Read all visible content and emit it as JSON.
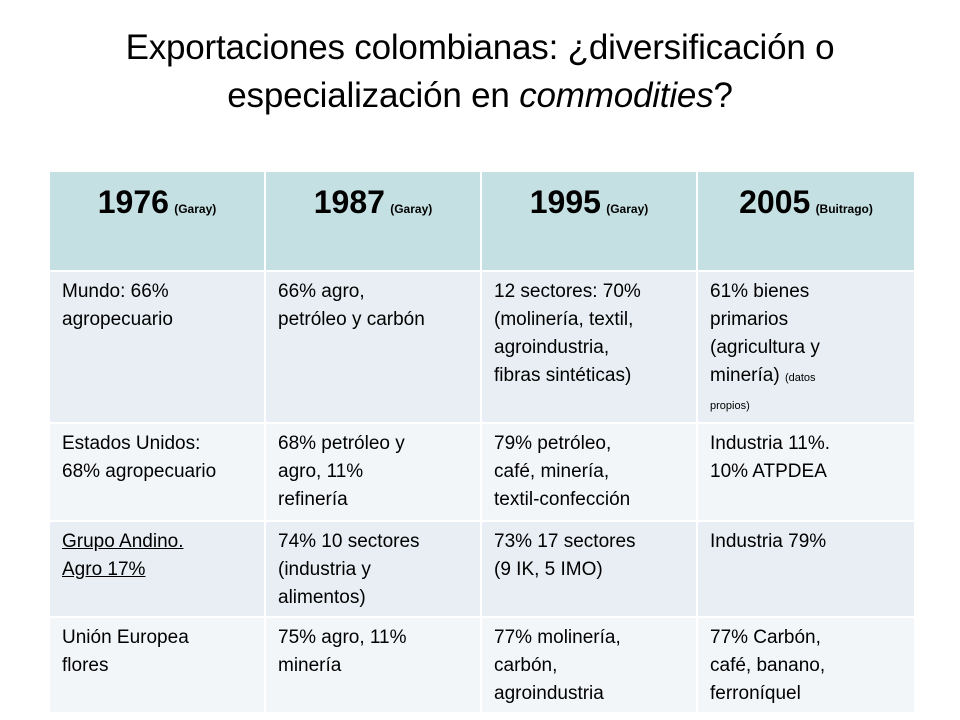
{
  "title": {
    "line1": "Exportaciones colombianas: ¿diversificación o",
    "line2_plain": "especialización en ",
    "line2_italic": "commodities",
    "line2_end": "?"
  },
  "table": {
    "headers": [
      {
        "year": "1976",
        "source": "(Garay)"
      },
      {
        "year": "1987",
        "source": "(Garay)"
      },
      {
        "year": "1995",
        "source": "(Garay)"
      },
      {
        "year": "2005",
        "source": "(Buitrago)"
      }
    ],
    "rows": [
      {
        "c0": [
          "Mundo: 66%",
          "agropecuario"
        ],
        "c1": [
          "66% agro,",
          "petróleo y carbón"
        ],
        "c2": [
          "12 sectores: 70%",
          "(molinería, textil,",
          "agroindustria,",
          "fibras sintéticas)"
        ],
        "c3": [
          "61% bienes",
          "primarios",
          "(agricultura y",
          "minería) "
        ],
        "c3_note_1": "(datos",
        "c3_note_2": "propios)"
      },
      {
        "c0": [
          "Estados Unidos:",
          "68% agropecuario"
        ],
        "c1": [
          "68% petróleo y",
          "agro, 11%",
          "refinería"
        ],
        "c2": [
          "79% petróleo,",
          "café, minería,",
          "textil-confección"
        ],
        "c3": [
          "Industria 11%.",
          "10% ATPDEA"
        ]
      },
      {
        "c0": [
          "Grupo Andino.",
          "Agro 17%"
        ],
        "c1": [
          "74% 10 sectores",
          "(industria y",
          "alimentos)"
        ],
        "c2": [
          "73% 17 sectores",
          "(9 IK, 5 IMO)"
        ],
        "c3": [
          "Industria 79%"
        ]
      },
      {
        "c0": [
          "Unión Europea",
          "flores"
        ],
        "c1": [
          "75% agro, 11%",
          "minería"
        ],
        "c2": [
          "77% molinería,",
          "carbón,",
          "agroindustria"
        ],
        "c3": [
          "77% Carbón,",
          "café, banano,",
          "ferroníquel"
        ]
      }
    ]
  },
  "colors": {
    "header_bg": "#c5e0e2",
    "row_dark": "#e8eef3",
    "row_light": "#f3f6f9"
  }
}
